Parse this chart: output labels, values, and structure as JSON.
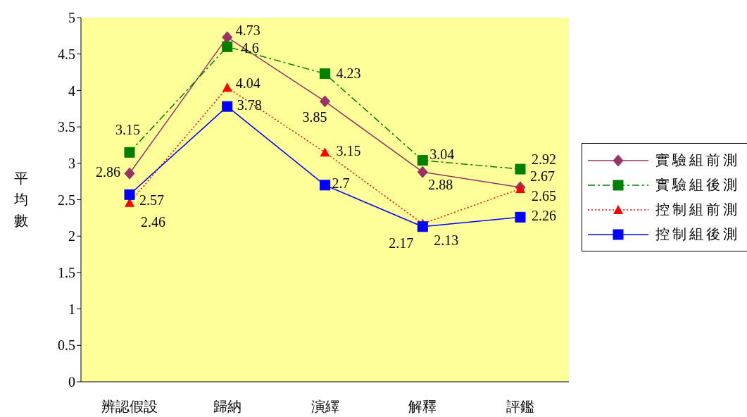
{
  "chart_data": {
    "type": "line",
    "ylabel": "平均數",
    "categories": [
      "辨認假設",
      "歸納",
      "演繹",
      "解釋",
      "評鑑"
    ],
    "series": [
      {
        "name": "實驗組前測",
        "color": "#993366",
        "marker": "diamond",
        "line_style": "solid",
        "values": [
          2.86,
          4.73,
          3.85,
          2.88,
          2.67
        ]
      },
      {
        "name": "實驗組後測",
        "color": "#008000",
        "marker": "square",
        "line_style": "dashed",
        "values": [
          3.15,
          4.6,
          4.23,
          3.04,
          2.92
        ]
      },
      {
        "name": "控制組前測",
        "color": "#ff0000",
        "marker": "triangle",
        "line_style": "dotted",
        "values": [
          2.46,
          4.04,
          3.15,
          2.17,
          2.65
        ]
      },
      {
        "name": "控制組後測",
        "color": "#0000ff",
        "marker": "square",
        "line_style": "solid",
        "values": [
          2.57,
          3.78,
          2.7,
          2.13,
          2.26
        ]
      }
    ],
    "ylim": [
      0,
      5
    ],
    "yticks": [
      0,
      0.5,
      1,
      1.5,
      2,
      2.5,
      3,
      3.5,
      4,
      4.5,
      5
    ],
    "grid": false,
    "legend": "right",
    "data_labels": true
  }
}
